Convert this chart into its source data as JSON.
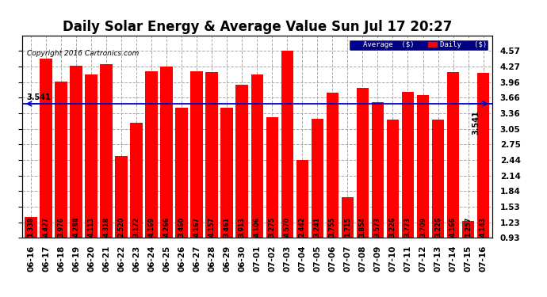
{
  "title": "Daily Solar Energy & Average Value Sun Jul 17 20:27",
  "copyright": "Copyright 2016 Cartronics.com",
  "categories": [
    "06-16",
    "06-17",
    "06-18",
    "06-19",
    "06-20",
    "06-21",
    "06-22",
    "06-23",
    "06-24",
    "06-25",
    "06-26",
    "06-27",
    "06-28",
    "06-29",
    "06-30",
    "07-01",
    "07-02",
    "07-03",
    "07-04",
    "07-05",
    "07-06",
    "07-07",
    "07-08",
    "07-09",
    "07-10",
    "07-11",
    "07-12",
    "07-13",
    "07-14",
    "07-15",
    "07-16"
  ],
  "values": [
    1.338,
    4.427,
    3.976,
    4.288,
    4.113,
    4.318,
    2.52,
    3.172,
    4.169,
    4.266,
    3.46,
    4.167,
    4.157,
    3.461,
    3.913,
    4.106,
    3.275,
    4.57,
    2.442,
    3.241,
    3.755,
    1.715,
    3.854,
    3.573,
    3.226,
    3.773,
    3.709,
    3.226,
    4.166,
    1.257,
    4.143
  ],
  "average": 3.541,
  "bar_color": "#ff0000",
  "average_line_color": "#0000cc",
  "ylim_min": 0.93,
  "ylim_max": 4.87,
  "yticks": [
    0.93,
    1.23,
    1.53,
    1.84,
    2.14,
    2.44,
    2.75,
    3.05,
    3.36,
    3.66,
    3.96,
    4.27,
    4.57
  ],
  "grid_color": "#aaaaaa",
  "plot_bg_color": "#ffffff",
  "title_fontsize": 12,
  "tick_fontsize": 7.5,
  "value_fontsize": 5.8,
  "legend_avg_color": "#000099",
  "legend_daily_color": "#ff0000",
  "bar_width": 0.82
}
